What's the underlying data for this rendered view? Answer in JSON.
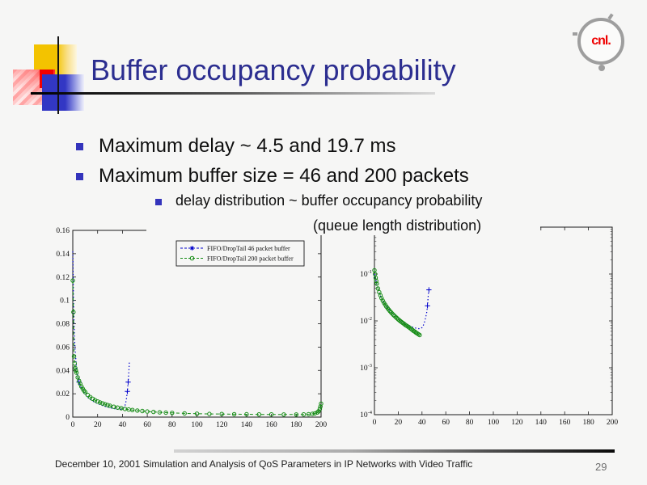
{
  "slide": {
    "title": "Buffer occupancy probability",
    "bullets": [
      {
        "label": "Maximum delay ~ 4.5 and 19.7 ms"
      },
      {
        "label": "Maximum buffer size = 46 and 200 packets"
      }
    ],
    "sub_bullet": {
      "line1": "delay distribution ~ buffer occupancy probability",
      "line2": "(queue length distribution)"
    },
    "footer": {
      "text": "December 10, 2001 Simulation and Analysis of QoS Parameters in IP Networks with Video Traffic",
      "page": "29"
    },
    "logo": {
      "text": "cnl."
    }
  },
  "colors": {
    "slide_bg": "#F6F6F5",
    "title": "#2C2E90",
    "bullet_marker": "#3434BC",
    "series_blue": "#0000CC",
    "series_green": "#128A12",
    "logo_red": "#EE0000"
  },
  "chart_data": [
    {
      "type": "scatter",
      "title": "",
      "xlabel": "",
      "ylabel": "",
      "yscale": "linear",
      "xlim": [
        0,
        200
      ],
      "ylim": [
        0,
        0.16
      ],
      "grid": false,
      "x_ticks": [
        {
          "value": 0,
          "label": "0"
        },
        {
          "value": 20,
          "label": "20"
        },
        {
          "value": 40,
          "label": "40"
        },
        {
          "value": 60,
          "label": "60"
        },
        {
          "value": 80,
          "label": "80"
        },
        {
          "value": 100,
          "label": "100"
        },
        {
          "value": 120,
          "label": "120"
        },
        {
          "value": 140,
          "label": "140"
        },
        {
          "value": 160,
          "label": "160"
        },
        {
          "value": 180,
          "label": "180"
        },
        {
          "value": 200,
          "label": "200"
        }
      ],
      "y_ticks": [
        {
          "value": 0,
          "label": "0"
        },
        {
          "value": 0.02,
          "label": "0.02"
        },
        {
          "value": 0.04,
          "label": "0.04"
        },
        {
          "value": 0.06,
          "label": "0.06"
        },
        {
          "value": 0.08,
          "label": "0.08"
        },
        {
          "value": 0.1,
          "label": "0.1"
        },
        {
          "value": 0.12,
          "label": "0.12"
        },
        {
          "value": 0.14,
          "label": "0.14"
        },
        {
          "value": 0.16,
          "label": "0.16"
        }
      ],
      "legend": {
        "position": "top-right-inside",
        "entries": [
          {
            "label": "FIFO/DropTail 46 packet buffer",
            "series": 0
          },
          {
            "label": "FIFO/DropTail 200 packet buffer",
            "series": 1
          }
        ]
      },
      "series": [
        {
          "name": "FIFO/DropTail 46 packet buffer",
          "color": "#0000CC",
          "line": "dotted",
          "marker": "plus",
          "marker_indices": [
            9,
            33,
            34
          ],
          "x": [
            0,
            0.3,
            0.6,
            1,
            1.4,
            2,
            2.6,
            3.2,
            4,
            5,
            6,
            7,
            8,
            9,
            10,
            12,
            14,
            16,
            18,
            20,
            22,
            24,
            26,
            28,
            30,
            32,
            34,
            36,
            38,
            40,
            41,
            42,
            43,
            44,
            44.6,
            45.2,
            45.6
          ],
          "y": [
            0.142,
            0.12,
            0.1,
            0.082,
            0.068,
            0.056,
            0.047,
            0.04,
            0.035,
            0.03,
            0.027,
            0.0245,
            0.0225,
            0.021,
            0.0195,
            0.017,
            0.0152,
            0.0138,
            0.0126,
            0.0116,
            0.0107,
            0.0099,
            0.0092,
            0.0086,
            0.008,
            0.0075,
            0.0071,
            0.0067,
            0.0064,
            0.0068,
            0.0078,
            0.0096,
            0.014,
            0.022,
            0.03,
            0.04,
            0.048
          ]
        },
        {
          "name": "FIFO/DropTail 200 packet buffer",
          "color": "#128A12",
          "line": "dashed",
          "marker": "circle",
          "x": [
            0,
            0.5,
            1,
            1.5,
            2,
            2.5,
            3,
            4,
            5,
            6,
            7,
            8,
            9,
            10,
            12,
            14,
            16,
            18,
            20,
            22,
            24,
            26,
            28,
            30,
            33,
            36,
            39,
            42,
            45,
            48,
            52,
            56,
            60,
            65,
            70,
            75,
            80,
            90,
            100,
            110,
            120,
            130,
            140,
            150,
            160,
            170,
            180,
            186,
            190,
            193,
            195,
            197,
            198,
            199,
            199.5,
            200
          ],
          "y": [
            0.117,
            0.09,
            0.052,
            0.046,
            0.042,
            0.04,
            0.038,
            0.034,
            0.031,
            0.0285,
            0.0262,
            0.0243,
            0.0227,
            0.0213,
            0.019,
            0.0172,
            0.0157,
            0.0145,
            0.0134,
            0.0125,
            0.0117,
            0.011,
            0.0103,
            0.0097,
            0.0089,
            0.0082,
            0.0076,
            0.007,
            0.0065,
            0.0061,
            0.0056,
            0.0052,
            0.0048,
            0.0044,
            0.0041,
            0.0038,
            0.0036,
            0.0032,
            0.0029,
            0.0027,
            0.0026,
            0.0025,
            0.0024,
            0.0023,
            0.0023,
            0.0022,
            0.0022,
            0.0023,
            0.0025,
            0.0028,
            0.0032,
            0.004,
            0.005,
            0.007,
            0.009,
            0.0115
          ]
        }
      ]
    },
    {
      "type": "scatter",
      "title": "",
      "xlabel": "",
      "ylabel": "",
      "yscale": "log",
      "xlim": [
        0,
        200
      ],
      "ylim": [
        0.0001,
        1
      ],
      "grid": false,
      "x_ticks": [
        {
          "value": 0,
          "label": "0"
        },
        {
          "value": 20,
          "label": "20"
        },
        {
          "value": 40,
          "label": "40"
        },
        {
          "value": 60,
          "label": "60"
        },
        {
          "value": 80,
          "label": "80"
        },
        {
          "value": 100,
          "label": "100"
        },
        {
          "value": 120,
          "label": "120"
        },
        {
          "value": 140,
          "label": "140"
        },
        {
          "value": 160,
          "label": "160"
        },
        {
          "value": 180,
          "label": "180"
        },
        {
          "value": 200,
          "label": "200"
        }
      ],
      "y_decades": [
        {
          "value": 0.1,
          "base": "10",
          "sup": "-1"
        },
        {
          "value": 0.01,
          "base": "10",
          "sup": "-2"
        },
        {
          "value": 0.001,
          "base": "10",
          "sup": "-3"
        },
        {
          "value": 0.0001,
          "base": "10",
          "sup": "-4"
        }
      ],
      "series": [
        {
          "name": "FIFO/DropTail 46 packet buffer",
          "color": "#0000CC",
          "line": "dotted",
          "marker": "plus",
          "marker_indices": [
            33,
            36
          ],
          "x": [
            0,
            0.5,
            1,
            1.5,
            2,
            3,
            4,
            5,
            6,
            7,
            8,
            9,
            10,
            12,
            14,
            16,
            18,
            20,
            22,
            24,
            26,
            28,
            30,
            32,
            34,
            36,
            38,
            39,
            40,
            41,
            42,
            43,
            44,
            44.6,
            45,
            45.4,
            45.8
          ],
          "y": [
            0.1,
            0.088,
            0.077,
            0.068,
            0.06,
            0.048,
            0.04,
            0.034,
            0.03,
            0.027,
            0.0245,
            0.0225,
            0.0207,
            0.0178,
            0.0156,
            0.0139,
            0.0125,
            0.0113,
            0.0104,
            0.0096,
            0.0089,
            0.0083,
            0.0078,
            0.0074,
            0.0071,
            0.0069,
            0.0068,
            0.0069,
            0.0072,
            0.0079,
            0.0092,
            0.0115,
            0.0155,
            0.021,
            0.03,
            0.038,
            0.046
          ]
        },
        {
          "name": "FIFO/DropTail 200 packet buffer",
          "color": "#128A12",
          "line": "dashed",
          "marker": "circle",
          "x": [
            0,
            0.5,
            1,
            1.5,
            2,
            3,
            4,
            5,
            6,
            7,
            8,
            9,
            10,
            11,
            12,
            13,
            14,
            15,
            16,
            17,
            18,
            19,
            20,
            21,
            22,
            23,
            24,
            25,
            26,
            27,
            28,
            29,
            30,
            31,
            32,
            33,
            34,
            35,
            36,
            37,
            38
          ],
          "y": [
            0.12,
            0.1,
            0.083,
            0.071,
            0.062,
            0.049,
            0.041,
            0.035,
            0.0305,
            0.027,
            0.0243,
            0.0222,
            0.0203,
            0.0188,
            0.0174,
            0.0162,
            0.0152,
            0.0143,
            0.0134,
            0.0127,
            0.012,
            0.0114,
            0.0108,
            0.0103,
            0.0098,
            0.0094,
            0.009,
            0.0086,
            0.0082,
            0.0079,
            0.0076,
            0.0073,
            0.007,
            0.0067,
            0.0064,
            0.0061,
            0.0059,
            0.0056,
            0.0054,
            0.0052,
            0.005
          ]
        }
      ]
    }
  ]
}
